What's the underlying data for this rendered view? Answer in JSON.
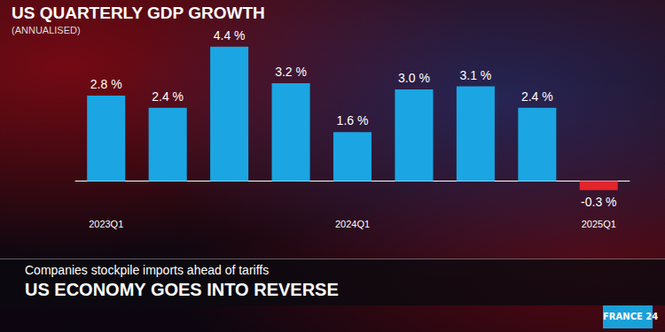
{
  "chart_data": {
    "type": "bar",
    "title": "US QUARTERLY GDP GROWTH",
    "subtitle": "(ANNUALISED)",
    "categories": [
      "2023Q1",
      null,
      null,
      null,
      "2024Q1",
      null,
      null,
      null,
      "2025Q1"
    ],
    "values": [
      2.8,
      2.4,
      4.4,
      3.2,
      1.6,
      3.0,
      3.1,
      2.4,
      -0.3
    ],
    "value_labels": [
      "2.8 %",
      "2.4 %",
      "4.4 %",
      "3.2 %",
      "1.6 %",
      "3.0 %",
      "3.1 %",
      "2.4 %",
      "-0.3 %"
    ],
    "colors": [
      "#1ba6e3",
      "#1ba6e3",
      "#1ba6e3",
      "#1ba6e3",
      "#1ba6e3",
      "#1ba6e3",
      "#1ba6e3",
      "#1ba6e3",
      "#e3242b"
    ],
    "ylim": [
      -1,
      5
    ],
    "grid": false,
    "data_labels": true,
    "tick_labels": "x"
  },
  "banner": {
    "kicker": "Companies stockpile imports ahead of tariffs",
    "headline": "US ECONOMY GOES INTO REVERSE"
  },
  "logo": "FRANCE 24"
}
